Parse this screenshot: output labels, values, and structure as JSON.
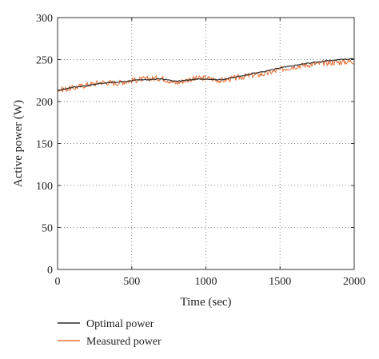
{
  "chart_data": {
    "type": "line",
    "xlabel": "Time (sec)",
    "ylabel": "Active power (W)",
    "xlim": [
      0,
      2000
    ],
    "ylim": [
      0,
      300
    ],
    "xticks": [
      0,
      500,
      1000,
      1500,
      2000
    ],
    "yticks": [
      0,
      50,
      100,
      150,
      200,
      250,
      300
    ],
    "grid": true,
    "grid_style": "dotted",
    "legend_placement": "below-left",
    "series": [
      {
        "name": "Optimal power",
        "color": "#2b2b2b",
        "x": [
          0,
          100,
          200,
          300,
          400,
          500,
          600,
          700,
          800,
          900,
          1000,
          1100,
          1200,
          1300,
          1400,
          1500,
          1600,
          1700,
          1800,
          1900,
          2000
        ],
        "y": [
          213,
          217,
          219,
          222,
          223,
          225,
          226,
          227,
          224,
          226,
          227,
          226,
          229,
          233,
          236,
          240,
          243,
          246,
          248,
          250,
          251
        ]
      },
      {
        "name": "Measured power",
        "color": "#e8743b",
        "x": [
          0,
          100,
          200,
          300,
          400,
          500,
          600,
          700,
          800,
          900,
          1000,
          1100,
          1200,
          1300,
          1400,
          1500,
          1600,
          1700,
          1800,
          1900,
          2000
        ],
        "y": [
          214,
          216,
          220,
          223,
          222,
          225,
          227,
          228,
          222,
          227,
          228,
          225,
          228,
          231,
          233,
          238,
          242,
          244,
          246,
          247,
          248
        ]
      }
    ]
  }
}
